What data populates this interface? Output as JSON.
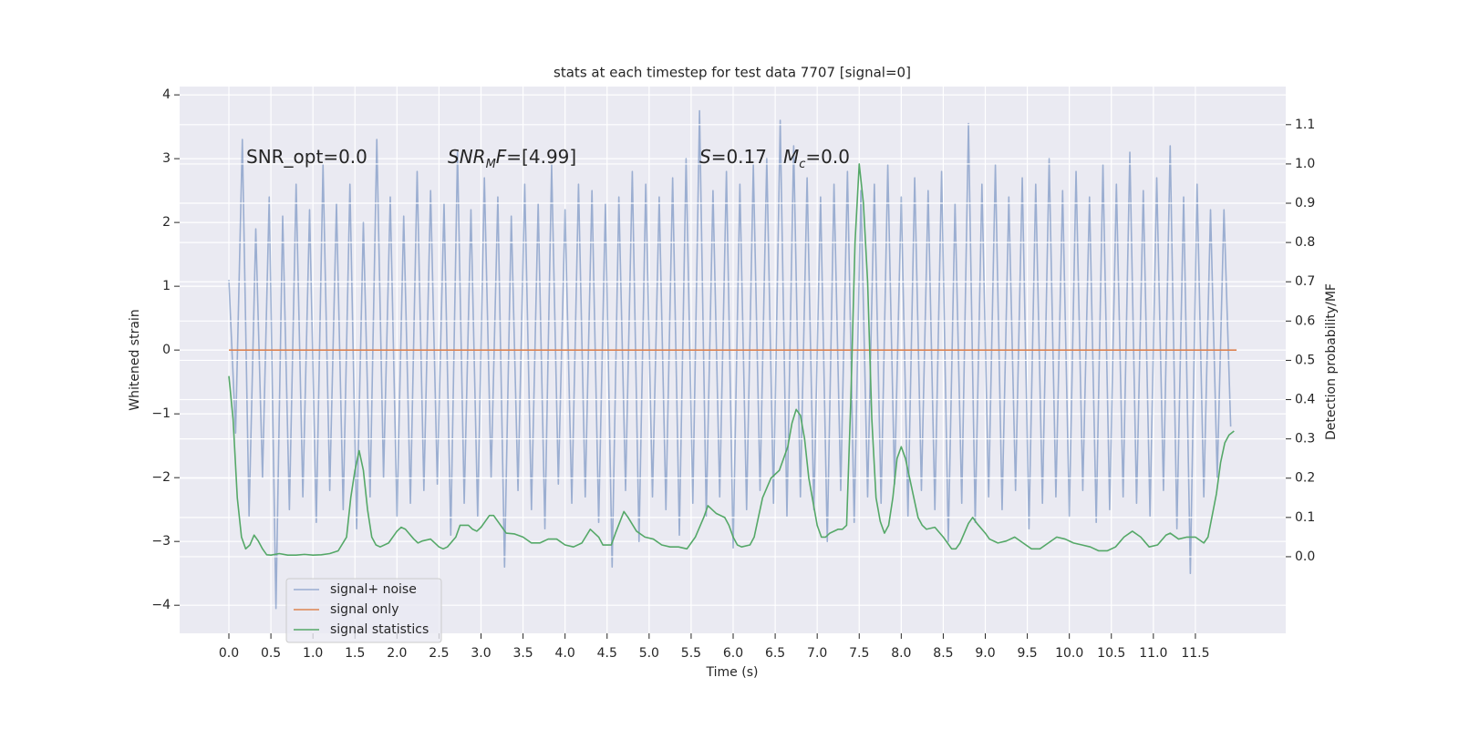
{
  "chart_data": {
    "type": "line",
    "title": "stats at each timestep for test data 7707 [signal=0]",
    "x_label": "Time (s)",
    "y_label": "Whitened strain",
    "y2_label": "Detection probability/MF",
    "annotations": [
      [
        {
          "text": "SNR_opt=0.0"
        }
      ],
      [
        {
          "text": "SNR",
          "italic": true
        },
        {
          "text": "M",
          "italic": true,
          "sub": true
        },
        {
          "text": "F",
          "italic": true
        },
        {
          "text": "=[4.99]"
        }
      ],
      [
        {
          "text": "S",
          "italic": true
        },
        {
          "text": "=0.17"
        }
      ],
      [
        {
          "text": "M",
          "italic": true
        },
        {
          "text": "c",
          "italic": true,
          "sub": true
        },
        {
          "text": "=0.0"
        }
      ]
    ],
    "xlim": [
      -0.586,
      12.575
    ],
    "ylim": [
      -4.44,
      4.13
    ],
    "y2lim": [
      -0.195,
      1.197
    ],
    "xticks": [
      {
        "value": 0,
        "label": "0.0"
      },
      0.5,
      {
        "value": 1,
        "label": "1.0"
      },
      1.5,
      {
        "value": 2,
        "label": "2.0"
      },
      2.5,
      {
        "value": 3,
        "label": "3.0"
      },
      3.5,
      {
        "value": 4,
        "label": "4.0"
      },
      4.5,
      {
        "value": 5,
        "label": "5.0"
      },
      5.5,
      {
        "value": 6,
        "label": "6.0"
      },
      6.5,
      {
        "value": 7,
        "label": "7.0"
      },
      7.5,
      {
        "value": 8,
        "label": "8.0"
      },
      8.5,
      {
        "value": 9,
        "label": "9.0"
      },
      9.5,
      {
        "value": 10,
        "label": "10.0"
      },
      10.5,
      {
        "value": 11,
        "label": "11.0"
      },
      11.5
    ],
    "yticks": [
      {
        "value": -4,
        "label": "−4"
      },
      {
        "value": -3,
        "label": "−3"
      },
      {
        "value": -2,
        "label": "−2"
      },
      {
        "value": -1,
        "label": "−1"
      },
      0,
      1,
      2,
      3,
      4
    ],
    "y2ticks": [
      {
        "value": 0,
        "label": "0.0"
      },
      0.1,
      0.2,
      0.3,
      0.4,
      0.5,
      0.6,
      0.7,
      0.8,
      0.9,
      {
        "value": 1,
        "label": "1.0"
      },
      1.1
    ],
    "grid": true,
    "legend": "lower left",
    "series": [
      {
        "name": "signal+ noise",
        "color": "#4c72b0",
        "opacity": 0.5,
        "x": [
          0,
          0.08,
          0.16,
          0.24,
          0.32,
          0.4,
          0.48,
          0.56,
          0.64,
          0.72,
          0.8,
          0.88,
          0.96,
          1.04,
          1.12,
          1.2,
          1.28,
          1.36,
          1.44,
          1.52,
          1.6,
          1.68,
          1.76,
          1.84,
          1.92,
          2,
          2.08,
          2.16,
          2.24,
          2.32,
          2.4,
          2.48,
          2.56,
          2.64,
          2.72,
          2.8,
          2.88,
          2.96,
          3.04,
          3.12,
          3.2,
          3.28,
          3.36,
          3.44,
          3.52,
          3.6,
          3.68,
          3.76,
          3.84,
          3.92,
          4,
          4.08,
          4.16,
          4.24,
          4.32,
          4.4,
          4.48,
          4.56,
          4.64,
          4.72,
          4.8,
          4.88,
          4.96,
          5.04,
          5.12,
          5.2,
          5.28,
          5.36,
          5.44,
          5.52,
          5.6,
          5.68,
          5.76,
          5.84,
          5.92,
          6,
          6.08,
          6.16,
          6.24,
          6.32,
          6.4,
          6.48,
          6.56,
          6.64,
          6.72,
          6.8,
          6.88,
          6.96,
          7.04,
          7.12,
          7.2,
          7.28,
          7.36,
          7.44,
          7.52,
          7.6,
          7.68,
          7.76,
          7.84,
          7.92,
          8,
          8.08,
          8.16,
          8.24,
          8.32,
          8.4,
          8.48,
          8.56,
          8.64,
          8.72,
          8.8,
          8.88,
          8.96,
          9.04,
          9.12,
          9.2,
          9.28,
          9.36,
          9.44,
          9.52,
          9.6,
          9.68,
          9.76,
          9.84,
          9.92,
          10,
          10.08,
          10.16,
          10.24,
          10.32,
          10.4,
          10.48,
          10.56,
          10.64,
          10.72,
          10.8,
          10.88,
          10.96,
          11.04,
          11.12,
          11.2,
          11.28,
          11.36,
          11.44,
          11.52,
          11.6,
          11.68,
          11.76,
          11.84,
          11.92
        ],
        "values": [
          1.1,
          -1.3,
          3.3,
          -2.6,
          1.9,
          -2.0,
          2.4,
          -4.05,
          2.1,
          -2.5,
          2.6,
          -2.3,
          2.2,
          -2.7,
          2.9,
          -2.2,
          2.3,
          -2.5,
          2.6,
          -2.8,
          2.0,
          -2.3,
          3.3,
          -2.0,
          2.4,
          -2.6,
          2.1,
          -2.4,
          2.8,
          -2.2,
          2.5,
          -2.1,
          2.3,
          -2.9,
          3.1,
          -2.4,
          2.2,
          -2.6,
          2.7,
          -2.0,
          2.4,
          -3.4,
          2.1,
          -2.2,
          2.6,
          -2.5,
          2.3,
          -2.8,
          2.9,
          -2.1,
          2.2,
          -2.4,
          2.6,
          -2.3,
          2.5,
          -2.7,
          2.3,
          -3.4,
          2.4,
          -2.2,
          2.8,
          -3.0,
          2.6,
          -2.3,
          2.4,
          -2.5,
          2.7,
          -2.9,
          3.0,
          -2.4,
          3.75,
          -2.6,
          2.5,
          -2.3,
          2.8,
          -3.1,
          2.6,
          -2.5,
          2.9,
          -2.2,
          3.0,
          -2.4,
          3.6,
          -2.6,
          3.2,
          -2.3,
          2.7,
          -2.5,
          2.4,
          -3.0,
          2.6,
          -2.2,
          2.8,
          -2.7,
          2.5,
          -2.3,
          2.6,
          -2.4,
          2.9,
          -2.1,
          2.4,
          -2.6,
          2.7,
          -2.2,
          2.5,
          -2.5,
          2.8,
          -3.0,
          2.3,
          -2.4,
          3.55,
          -2.7,
          2.6,
          -2.3,
          2.9,
          -2.5,
          2.4,
          -2.2,
          2.7,
          -2.8,
          2.6,
          -2.4,
          3.0,
          -2.3,
          2.5,
          -2.6,
          2.8,
          -2.2,
          2.4,
          -2.7,
          2.9,
          -2.5,
          2.6,
          -2.3,
          3.1,
          -2.4,
          2.5,
          -2.6,
          2.7,
          -2.2,
          3.2,
          -2.8,
          2.4,
          -3.5,
          2.6,
          -2.3,
          2.2,
          -2.0,
          2.2,
          -1.2
        ]
      },
      {
        "name": "signal only",
        "color": "#dd8452",
        "x": [
          0,
          11.99
        ],
        "values": [
          0,
          0
        ]
      },
      {
        "name": "signal statistics",
        "color": "#55a868",
        "axis": "y2",
        "x": [
          0,
          0.05,
          0.1,
          0.15,
          0.2,
          0.25,
          0.3,
          0.35,
          0.4,
          0.45,
          0.5,
          0.6,
          0.7,
          0.8,
          0.9,
          1,
          1.1,
          1.2,
          1.3,
          1.4,
          1.45,
          1.5,
          1.55,
          1.6,
          1.65,
          1.7,
          1.75,
          1.8,
          1.9,
          2,
          2.05,
          2.1,
          2.2,
          2.25,
          2.3,
          2.4,
          2.5,
          2.55,
          2.6,
          2.7,
          2.75,
          2.85,
          2.9,
          2.95,
          3,
          3.05,
          3.1,
          3.15,
          3.2,
          3.3,
          3.4,
          3.5,
          3.6,
          3.7,
          3.8,
          3.9,
          4,
          4.1,
          4.2,
          4.3,
          4.4,
          4.45,
          4.55,
          4.6,
          4.7,
          4.75,
          4.85,
          4.95,
          5.05,
          5.15,
          5.25,
          5.35,
          5.45,
          5.55,
          5.65,
          5.7,
          5.8,
          5.9,
          5.95,
          6,
          6.05,
          6.1,
          6.2,
          6.25,
          6.3,
          6.35,
          6.45,
          6.55,
          6.65,
          6.7,
          6.75,
          6.8,
          6.85,
          6.9,
          6.95,
          7,
          7.05,
          7.1,
          7.15,
          7.25,
          7.3,
          7.35,
          7.4,
          7.45,
          7.5,
          7.55,
          7.6,
          7.65,
          7.7,
          7.75,
          7.8,
          7.85,
          7.9,
          7.95,
          8,
          8.05,
          8.1,
          8.15,
          8.2,
          8.25,
          8.3,
          8.4,
          8.5,
          8.6,
          8.65,
          8.7,
          8.8,
          8.85,
          8.9,
          9,
          9.05,
          9.15,
          9.25,
          9.35,
          9.45,
          9.55,
          9.65,
          9.75,
          9.85,
          9.95,
          10.05,
          10.15,
          10.25,
          10.35,
          10.45,
          10.55,
          10.65,
          10.75,
          10.85,
          10.95,
          11.05,
          11.15,
          11.2,
          11.3,
          11.4,
          11.5,
          11.6,
          11.65,
          11.75,
          11.8,
          11.85,
          11.9,
          11.96
        ],
        "values": [
          0.46,
          0.35,
          0.15,
          0.05,
          0.02,
          0.03,
          0.055,
          0.04,
          0.02,
          0.005,
          0.004,
          0.008,
          0.004,
          0.004,
          0.006,
          0.004,
          0.005,
          0.008,
          0.015,
          0.05,
          0.15,
          0.22,
          0.27,
          0.22,
          0.12,
          0.05,
          0.03,
          0.025,
          0.035,
          0.065,
          0.075,
          0.07,
          0.045,
          0.035,
          0.04,
          0.045,
          0.025,
          0.02,
          0.025,
          0.05,
          0.08,
          0.08,
          0.07,
          0.065,
          0.075,
          0.09,
          0.105,
          0.105,
          0.09,
          0.06,
          0.058,
          0.05,
          0.035,
          0.035,
          0.045,
          0.045,
          0.03,
          0.025,
          0.035,
          0.07,
          0.05,
          0.03,
          0.03,
          0.06,
          0.115,
          0.1,
          0.065,
          0.05,
          0.045,
          0.03,
          0.025,
          0.025,
          0.02,
          0.05,
          0.1,
          0.13,
          0.11,
          0.1,
          0.08,
          0.05,
          0.03,
          0.025,
          0.03,
          0.05,
          0.1,
          0.15,
          0.2,
          0.22,
          0.28,
          0.34,
          0.375,
          0.36,
          0.3,
          0.2,
          0.14,
          0.08,
          0.05,
          0.05,
          0.06,
          0.07,
          0.07,
          0.08,
          0.4,
          0.8,
          1.0,
          0.9,
          0.7,
          0.35,
          0.15,
          0.09,
          0.06,
          0.08,
          0.15,
          0.25,
          0.28,
          0.25,
          0.2,
          0.15,
          0.1,
          0.08,
          0.07,
          0.075,
          0.05,
          0.02,
          0.02,
          0.035,
          0.085,
          0.1,
          0.085,
          0.06,
          0.045,
          0.035,
          0.04,
          0.05,
          0.035,
          0.02,
          0.02,
          0.035,
          0.05,
          0.045,
          0.035,
          0.03,
          0.025,
          0.015,
          0.015,
          0.025,
          0.05,
          0.065,
          0.05,
          0.025,
          0.03,
          0.055,
          0.06,
          0.045,
          0.05,
          0.05,
          0.035,
          0.05,
          0.16,
          0.24,
          0.29,
          0.31,
          0.32
        ]
      }
    ]
  }
}
